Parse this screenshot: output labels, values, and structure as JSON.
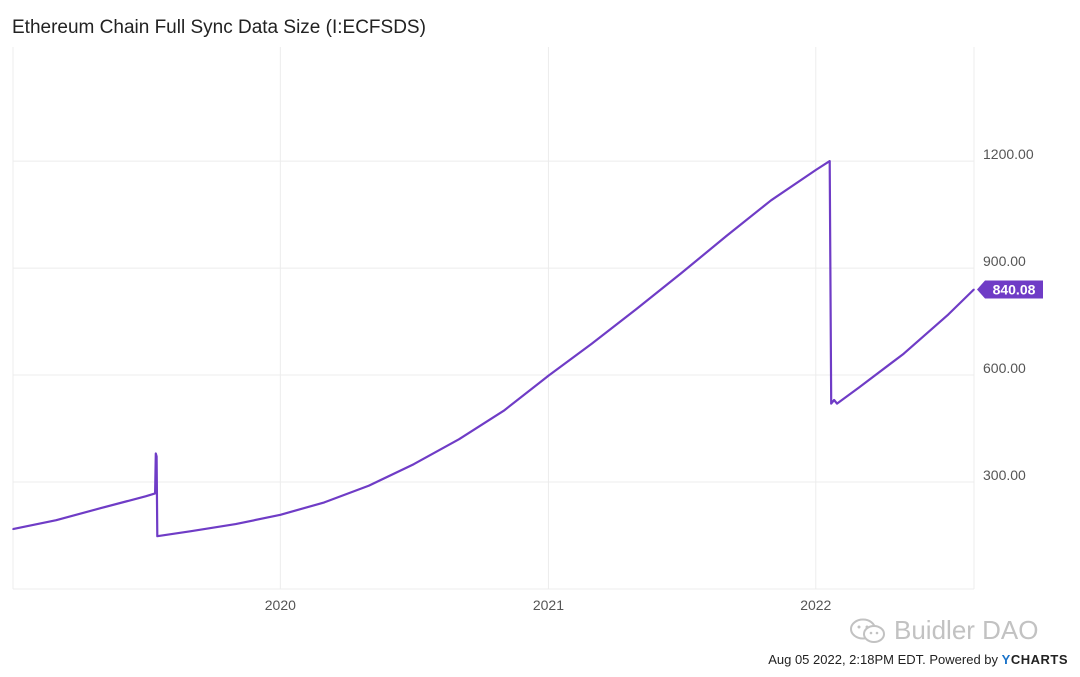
{
  "title": "Ethereum Chain Full Sync Data Size (I:ECFSDS)",
  "footer": {
    "timestamp": "Aug 05 2022, 2:18PM EDT.",
    "powered_by": "Powered by",
    "brand_y": "Y",
    "brand_rest": "CHARTS"
  },
  "watermark": {
    "text": "Buidler DAO",
    "icon": "wechat-icon"
  },
  "colors": {
    "series": "#6f3cc6",
    "grid": "#ececec",
    "label_bg": "#6f3cc6"
  },
  "chart_data": {
    "type": "line",
    "title": "Ethereum Chain Full Sync Data Size (I:ECFSDS)",
    "xlabel": "",
    "ylabel": "",
    "x_ticks": [
      "2020",
      "2021",
      "2022"
    ],
    "y_ticks": [
      "300.00",
      "600.00",
      "900.00",
      "1200.00"
    ],
    "ylim": [
      0,
      1520
    ],
    "xlim": [
      "2019-01-01",
      "2022-08-05"
    ],
    "grid": true,
    "last_value_label": "840.08",
    "series": [
      {
        "values": [
          {
            "x": "2019-01-01",
            "y": 168
          },
          {
            "x": "2019-03-01",
            "y": 193
          },
          {
            "x": "2019-05-01",
            "y": 227
          },
          {
            "x": "2019-07-01",
            "y": 260
          },
          {
            "x": "2019-07-14",
            "y": 268
          },
          {
            "x": "2019-07-15",
            "y": 380
          },
          {
            "x": "2019-07-16",
            "y": 372
          },
          {
            "x": "2019-07-17",
            "y": 148
          },
          {
            "x": "2019-09-01",
            "y": 162
          },
          {
            "x": "2019-11-01",
            "y": 182
          },
          {
            "x": "2020-01-01",
            "y": 208
          },
          {
            "x": "2020-03-01",
            "y": 243
          },
          {
            "x": "2020-05-01",
            "y": 290
          },
          {
            "x": "2020-07-01",
            "y": 350
          },
          {
            "x": "2020-09-01",
            "y": 420
          },
          {
            "x": "2020-11-01",
            "y": 500
          },
          {
            "x": "2021-01-01",
            "y": 598
          },
          {
            "x": "2021-03-01",
            "y": 688
          },
          {
            "x": "2021-05-01",
            "y": 785
          },
          {
            "x": "2021-07-01",
            "y": 885
          },
          {
            "x": "2021-09-01",
            "y": 990
          },
          {
            "x": "2021-11-01",
            "y": 1090
          },
          {
            "x": "2022-01-01",
            "y": 1175
          },
          {
            "x": "2022-01-20",
            "y": 1200
          },
          {
            "x": "2022-01-22",
            "y": 520
          },
          {
            "x": "2022-01-26",
            "y": 530
          },
          {
            "x": "2022-01-30",
            "y": 520
          },
          {
            "x": "2022-03-01",
            "y": 565
          },
          {
            "x": "2022-05-01",
            "y": 660
          },
          {
            "x": "2022-07-01",
            "y": 770
          },
          {
            "x": "2022-08-05",
            "y": 840.08
          }
        ]
      }
    ]
  }
}
